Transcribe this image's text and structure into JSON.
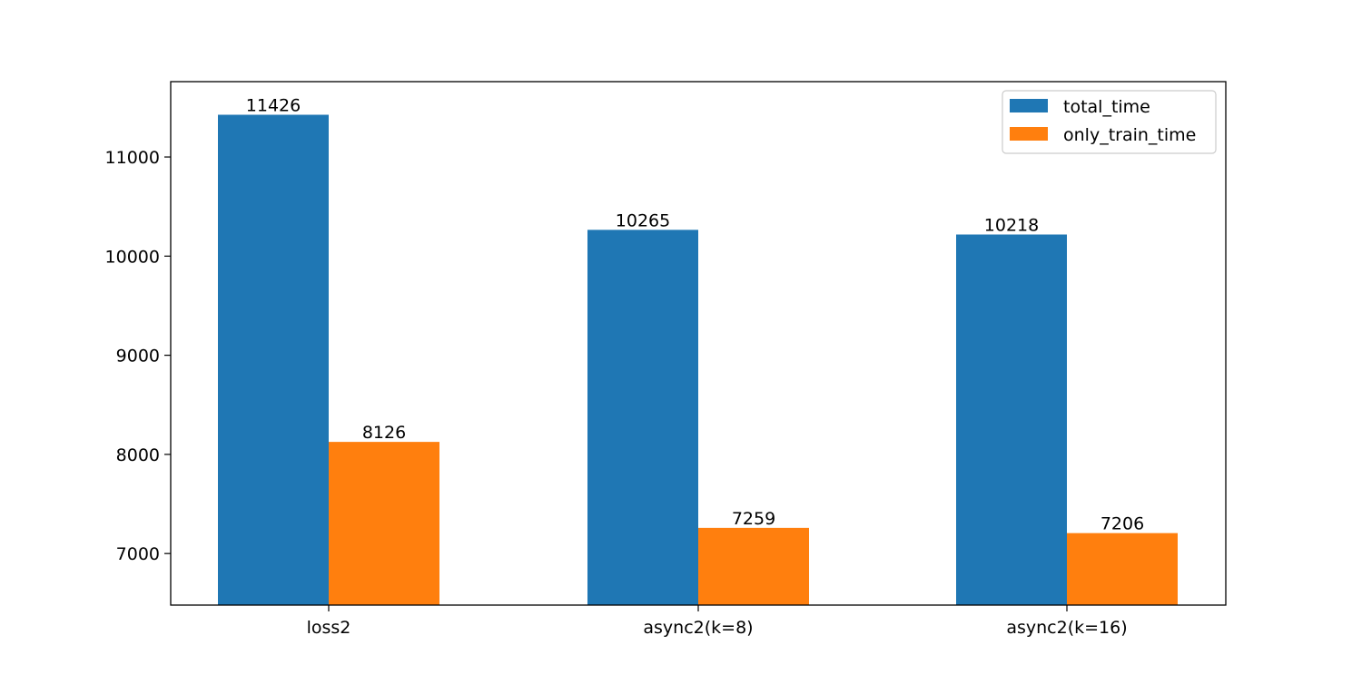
{
  "chart_data": {
    "type": "bar",
    "title": "",
    "xlabel": "",
    "ylabel": "",
    "categories": [
      "loss2",
      "async2(k=8)",
      "async2(k=16)"
    ],
    "series": [
      {
        "name": "total_time",
        "values": [
          11426,
          10265,
          10218
        ],
        "color": "#1f77b4"
      },
      {
        "name": "only_train_time",
        "values": [
          8126,
          7259,
          7206
        ],
        "color": "#ff7f0e"
      }
    ],
    "ylim": [
      6480,
      11760
    ],
    "yticks": [
      7000,
      8000,
      9000,
      10000,
      11000
    ],
    "grid": false,
    "legend": "top-right",
    "data_labels": true
  }
}
